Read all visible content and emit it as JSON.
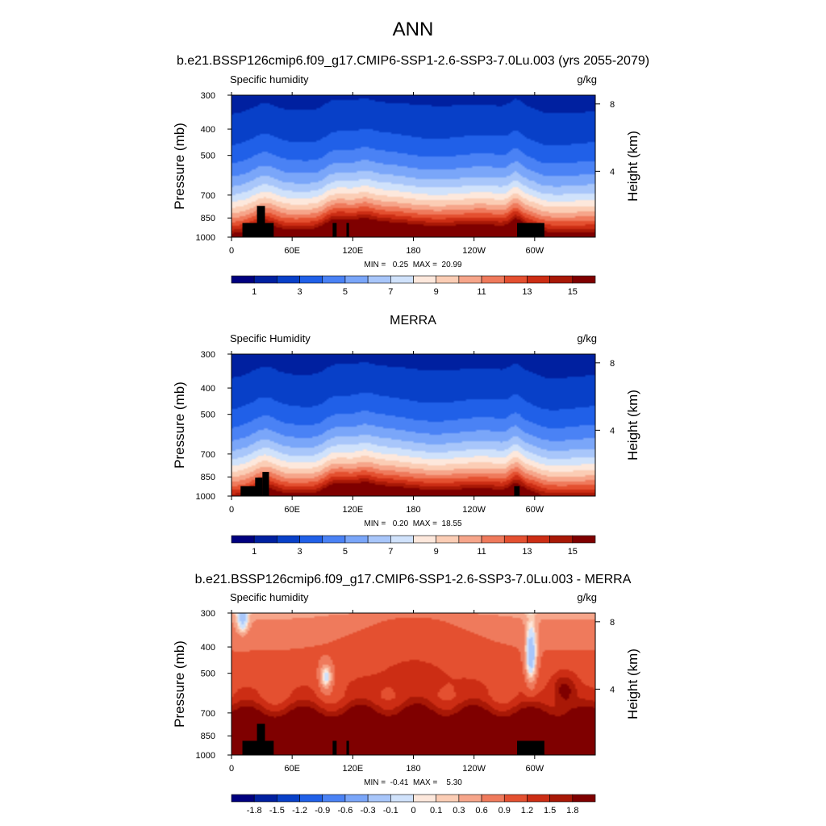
{
  "figure": {
    "title": "ANN"
  },
  "chart_data": [
    {
      "type": "heatmap",
      "title": "b.e21.BSSP126cmip6.f09_g17.CMIP6-SSP1-2.6-SSP3-7.0Lu.003 (yrs 2055-2079)",
      "left_label": "Specific humidity",
      "units": "g/kg",
      "ylabel": "Pressure (mb)",
      "y2label": "Height (km)",
      "xlabel": "",
      "x_ticks": [
        "0",
        "60E",
        "120E",
        "180",
        "120W",
        "60W"
      ],
      "y_ticks": [
        "300",
        "400",
        "500",
        "700",
        "850",
        "1000"
      ],
      "y2_ticks": [
        "8",
        "4"
      ],
      "stats": "MIN =   0.25  MAX =  20.99",
      "min": 0.25,
      "max": 20.99,
      "mode": "field",
      "levels": [
        0.5,
        1,
        2,
        3,
        4,
        5,
        6,
        7,
        8,
        9,
        10,
        11,
        12,
        13,
        14,
        15
      ],
      "colorbar_labels": [
        "1",
        "3",
        "5",
        "7",
        "9",
        "11",
        "13",
        "15"
      ],
      "colorbar_colors": [
        "#00007f",
        "#0020a0",
        "#0840c8",
        "#2060e8",
        "#4a82f5",
        "#7aa6f9",
        "#a8c6fa",
        "#d0e2fb",
        "#fde8dc",
        "#fbcdb5",
        "#f6a58a",
        "#ef7a5c",
        "#e45030",
        "#cc2d14",
        "#a81806",
        "#7f0000"
      ]
    },
    {
      "type": "heatmap",
      "title": "MERRA",
      "left_label": "Specific Humidity",
      "units": "g/kg",
      "ylabel": "Pressure (mb)",
      "y2label": "Height (km)",
      "xlabel": "",
      "x_ticks": [
        "0",
        "60E",
        "120E",
        "180",
        "120W",
        "60W"
      ],
      "y_ticks": [
        "300",
        "400",
        "500",
        "700",
        "850",
        "1000"
      ],
      "y2_ticks": [
        "8",
        "4"
      ],
      "stats": "MIN =   0.20  MAX =  18.55",
      "min": 0.2,
      "max": 18.55,
      "mode": "field",
      "levels": [
        0.5,
        1,
        2,
        3,
        4,
        5,
        6,
        7,
        8,
        9,
        10,
        11,
        12,
        13,
        14,
        15
      ],
      "colorbar_labels": [
        "1",
        "3",
        "5",
        "7",
        "9",
        "11",
        "13",
        "15"
      ],
      "colorbar_colors": [
        "#00007f",
        "#0020a0",
        "#0840c8",
        "#2060e8",
        "#4a82f5",
        "#7aa6f9",
        "#a8c6fa",
        "#d0e2fb",
        "#fde8dc",
        "#fbcdb5",
        "#f6a58a",
        "#ef7a5c",
        "#e45030",
        "#cc2d14",
        "#a81806",
        "#7f0000"
      ]
    },
    {
      "type": "heatmap",
      "title": "b.e21.BSSP126cmip6.f09_g17.CMIP6-SSP1-2.6-SSP3-7.0Lu.003 - MERRA",
      "left_label": "Specific humidity",
      "units": "g/kg",
      "ylabel": "Pressure (mb)",
      "y2label": "Height (km)",
      "xlabel": "",
      "x_ticks": [
        "0",
        "60E",
        "120E",
        "180",
        "120W",
        "60W"
      ],
      "y_ticks": [
        "300",
        "400",
        "500",
        "700",
        "850",
        "1000"
      ],
      "y2_ticks": [
        "8",
        "4"
      ],
      "stats": "MIN =  -0.41  MAX =    5.30",
      "min": -0.41,
      "max": 5.3,
      "mode": "diff",
      "levels": [
        -2.1,
        -1.8,
        -1.5,
        -1.2,
        -0.9,
        -0.6,
        -0.3,
        -0.1,
        0,
        0.1,
        0.3,
        0.6,
        0.9,
        1.2,
        1.5,
        1.8
      ],
      "colorbar_labels": [
        "-1.8",
        "-1.5",
        "-1.2",
        "-0.9",
        "-0.6",
        "-0.3",
        "-0.1",
        "0",
        "0.1",
        "0.3",
        "0.6",
        "0.9",
        "1.2",
        "1.5",
        "1.8"
      ],
      "colorbar_colors": [
        "#00007f",
        "#0020a0",
        "#0840c8",
        "#2060e8",
        "#4a82f5",
        "#7aa6f9",
        "#a8c6fa",
        "#d0e2fb",
        "#fde8dc",
        "#fbcdb5",
        "#f6a58a",
        "#ef7a5c",
        "#e45030",
        "#cc2d14",
        "#a81806",
        "#7f0000"
      ]
    }
  ]
}
